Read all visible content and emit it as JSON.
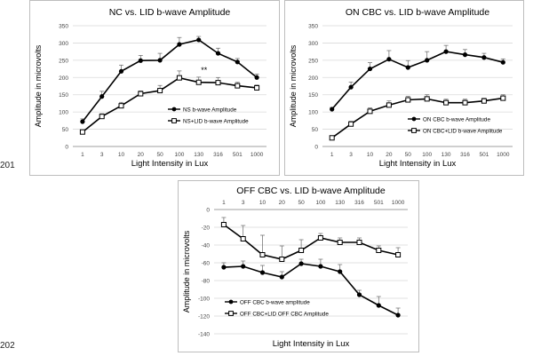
{
  "side_labels": [
    "201",
    "202"
  ],
  "chart_data": [
    {
      "type": "line",
      "title": "NC vs. LID b-wave Amplitude",
      "xlabel": "Light Intensity in Lux",
      "ylabel": "Amplitude in microvolts",
      "categories": [
        "1",
        "3",
        "10",
        "20",
        "50",
        "100",
        "130",
        "316",
        "501",
        "1000"
      ],
      "ylim": [
        0,
        350
      ],
      "yticks": [
        0,
        50,
        100,
        150,
        200,
        250,
        300,
        350
      ],
      "legend_position": "bottom-right",
      "annotations": [
        {
          "text": "**",
          "category": "130",
          "y": 214
        }
      ],
      "series": [
        {
          "name": "NS b-wave Amplitude",
          "marker": "filled-circle",
          "values": [
            72,
            145,
            218,
            249,
            250,
            296,
            309,
            270,
            245,
            200
          ],
          "errors": [
            8,
            15,
            18,
            15,
            20,
            20,
            10,
            15,
            10,
            10
          ]
        },
        {
          "name": "NS+LID b-wave Amplitude",
          "marker": "open-square",
          "values": [
            42,
            87,
            118,
            153,
            162,
            199,
            186,
            185,
            176,
            170
          ],
          "errors": [
            5,
            8,
            10,
            8,
            15,
            20,
            15,
            15,
            10,
            8
          ]
        }
      ]
    },
    {
      "type": "line",
      "title": "ON CBC vs. LID b-wave Amplitude",
      "xlabel": "Light Intensity in Lux",
      "ylabel": "Amplitude in microvolts",
      "categories": [
        "1",
        "3",
        "10",
        "20",
        "50",
        "100",
        "130",
        "316",
        "501",
        "1000"
      ],
      "ylim": [
        0,
        350
      ],
      "yticks": [
        0,
        50,
        100,
        150,
        200,
        250,
        300,
        350
      ],
      "legend_position": "bottom-right",
      "series": [
        {
          "name": "ON CBC b-wave Amplitude",
          "marker": "filled-circle",
          "values": [
            108,
            172,
            225,
            253,
            229,
            250,
            275,
            266,
            258,
            244
          ],
          "errors": [
            5,
            15,
            18,
            25,
            20,
            25,
            18,
            15,
            12,
            10
          ]
        },
        {
          "name": "ON CBC+LID b-wave Amplitude",
          "marker": "open-square",
          "values": [
            25,
            65,
            102,
            120,
            135,
            138,
            127,
            127,
            132,
            140
          ],
          "errors": [
            5,
            8,
            10,
            12,
            10,
            12,
            10,
            10,
            8,
            10
          ]
        }
      ]
    },
    {
      "type": "line",
      "title": "OFF CBC vs. LID b-wave Amplitude",
      "xlabel": "Light Intensity in Lux",
      "ylabel": "Amplitude in microvolts",
      "categories": [
        "1",
        "3",
        "10",
        "20",
        "50",
        "100",
        "130",
        "316",
        "501",
        "1000"
      ],
      "x_axis_position": "top",
      "ylim": [
        -140,
        0
      ],
      "yticks": [
        0,
        -20,
        -40,
        -60,
        -80,
        -100,
        -120,
        -140
      ],
      "legend_position": "bottom-left",
      "series": [
        {
          "name": "OFF CBC b-wave amplitude",
          "marker": "filled-circle",
          "values": [
            -65,
            -64,
            -71,
            -76,
            -61,
            -64,
            -70,
            -96,
            -108,
            -119
          ],
          "errors": [
            5,
            6,
            8,
            6,
            5,
            8,
            8,
            5,
            10,
            8
          ]
        },
        {
          "name": "OFF CBC+LID OFF CBC Amplitude",
          "marker": "open-square",
          "values": [
            -17,
            -33,
            -51,
            -56,
            -46,
            -32,
            -37,
            -37,
            -46,
            -51
          ],
          "errors": [
            8,
            15,
            22,
            15,
            12,
            5,
            5,
            5,
            5,
            8
          ]
        }
      ]
    }
  ]
}
